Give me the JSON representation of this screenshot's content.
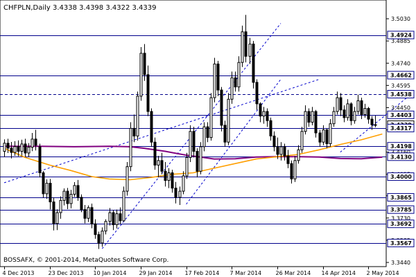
{
  "window": {
    "symbol_line": "CHFPLN,Daily  3.4338 3.4398 3.4322 3.4339",
    "copyright": "BOSSAFX, © 2001-2014, MetaQuotes Software Corp."
  },
  "colors": {
    "background": "#ffffff",
    "candle": "#000000",
    "level_line": "#00008b",
    "trend_line": "#0000cd",
    "ma_fast": "#ff9f00",
    "ma_slow": "#800080",
    "badge_fill": "#ffffff"
  },
  "chart_data": {
    "type": "candlestick",
    "symbol": "CHFPLN",
    "timeframe": "Daily",
    "ohlc_last": {
      "open": 3.4338,
      "high": 3.4398,
      "low": 3.4322,
      "close": 3.4339
    },
    "ylim": [
      3.344,
      3.508
    ],
    "y_ticks": [
      {
        "label": "3.5030",
        "value": 3.503
      },
      {
        "label": "3.4885",
        "value": 3.4885
      },
      {
        "label": "3.4740",
        "value": 3.474
      },
      {
        "label": "3.4595",
        "value": 3.4595
      },
      {
        "label": "3.4450",
        "value": 3.445
      },
      {
        "label": "3.4305",
        "value": 3.4305
      },
      {
        "label": "3.4160",
        "value": 3.416
      },
      {
        "label": "3.4015",
        "value": 3.4015
      },
      {
        "label": "3.3875",
        "value": 3.3875
      },
      {
        "label": "3.3730",
        "value": 3.373
      },
      {
        "label": "3.3585",
        "value": 3.3585
      },
      {
        "label": "3.3440",
        "value": 3.344
      }
    ],
    "x_ticks": [
      "4 Dec 2013",
      "23 Dec 2013",
      "10 Jan 2014",
      "29 Jan 2014",
      "17 Feb 2014",
      "7 Mar 2014",
      "26 Mar 2014",
      "14 Apr 2014",
      "2 May 2014"
    ],
    "x_tick_index": [
      0,
      13,
      26,
      39,
      52,
      65,
      78,
      91,
      104
    ],
    "horizontal_levels": [
      {
        "label": "3.4924",
        "value": 3.4924
      },
      {
        "label": "3.4662",
        "value": 3.4662
      },
      {
        "label": "3.4538",
        "value": 3.4538,
        "style": "dashed"
      },
      {
        "label": "3.4403",
        "value": 3.4403
      },
      {
        "label": "3.4339",
        "value": 3.4339,
        "current": true
      },
      {
        "label": "3.4317",
        "value": 3.4317
      },
      {
        "label": "3.4198",
        "value": 3.4198
      },
      {
        "label": "3.4130",
        "value": 3.413
      },
      {
        "label": "3.4000",
        "value": 3.4
      },
      {
        "label": "3.3865",
        "value": 3.3865
      },
      {
        "label": "3.3785",
        "value": 3.3785
      },
      {
        "label": "3.3692",
        "value": 3.3692
      },
      {
        "label": "3.3567",
        "value": 3.3567
      }
    ],
    "trend_lines": [
      {
        "from": [
          0,
          3.396
        ],
        "to": [
          90,
          3.4635
        ]
      },
      {
        "from": [
          28,
          3.353
        ],
        "to": [
          79,
          3.5
        ],
        "bounded": true
      },
      {
        "from": [
          52,
          3.382
        ],
        "to": [
          79,
          3.4635
        ]
      },
      {
        "from": [
          96,
          3.416
        ],
        "to": [
          115,
          3.4515
        ],
        "bounded": true
      }
    ],
    "moving_average_fast": [
      [
        0,
        3.4185
      ],
      [
        6,
        3.4125
      ],
      [
        13,
        3.4075
      ],
      [
        19,
        3.404
      ],
      [
        25,
        3.4
      ],
      [
        30,
        3.3985
      ],
      [
        36,
        3.398
      ],
      [
        42,
        3.3995
      ],
      [
        48,
        3.4015
      ],
      [
        54,
        3.4025
      ],
      [
        60,
        3.4055
      ],
      [
        66,
        3.4085
      ],
      [
        72,
        3.4115
      ],
      [
        78,
        3.413
      ],
      [
        84,
        3.4145
      ],
      [
        90,
        3.4175
      ],
      [
        96,
        3.421
      ],
      [
        102,
        3.424
      ],
      [
        108,
        3.4278
      ]
    ],
    "moving_average_slow": [
      [
        0,
        3.4198
      ],
      [
        10,
        3.4198
      ],
      [
        20,
        3.4195
      ],
      [
        30,
        3.4198
      ],
      [
        36,
        3.4195
      ],
      [
        40,
        3.4185
      ],
      [
        46,
        3.4165
      ],
      [
        52,
        3.414
      ],
      [
        56,
        3.4128
      ],
      [
        60,
        3.4115
      ],
      [
        66,
        3.4117
      ],
      [
        72,
        3.4128
      ],
      [
        78,
        3.413
      ],
      [
        84,
        3.413
      ],
      [
        90,
        3.4128
      ],
      [
        96,
        3.4118
      ],
      [
        102,
        3.4117
      ],
      [
        108,
        3.4127
      ]
    ],
    "candles": [
      [
        0,
        3.4165,
        3.4243,
        3.4128,
        3.4218
      ],
      [
        1,
        3.4218,
        3.4247,
        3.4154,
        3.4186
      ],
      [
        2,
        3.4186,
        3.4226,
        3.4119,
        3.4158
      ],
      [
        3,
        3.4158,
        3.4231,
        3.4136,
        3.4196
      ],
      [
        4,
        3.4196,
        3.4236,
        3.4133,
        3.4165
      ],
      [
        5,
        3.4165,
        3.4241,
        3.4137,
        3.4213
      ],
      [
        6,
        3.4213,
        3.4247,
        3.4129,
        3.4154
      ],
      [
        7,
        3.4154,
        3.4219,
        3.4127,
        3.4192
      ],
      [
        8,
        3.4192,
        3.4285,
        3.4166,
        3.4245
      ],
      [
        9,
        3.4245,
        3.4305,
        3.4171,
        3.4205
      ],
      [
        10,
        3.4195,
        3.4215,
        3.3995,
        3.4025
      ],
      [
        11,
        3.4025,
        3.4036,
        3.3862,
        3.3888
      ],
      [
        12,
        3.3888,
        3.3982,
        3.3855,
        3.3957
      ],
      [
        13,
        3.3957,
        3.3985,
        3.3786,
        3.3835
      ],
      [
        14,
        3.3835,
        3.3864,
        3.3649,
        3.3694
      ],
      [
        15,
        3.3694,
        3.3787,
        3.3651,
        3.3765
      ],
      [
        16,
        3.3765,
        3.3871,
        3.3725,
        3.3845
      ],
      [
        17,
        3.3845,
        3.3923,
        3.3812,
        3.3905
      ],
      [
        18,
        3.3905,
        3.3926,
        3.3788,
        3.3824
      ],
      [
        19,
        3.3824,
        3.3914,
        3.3793,
        3.3885
      ],
      [
        20,
        3.3885,
        3.3964,
        3.3868,
        3.3942
      ],
      [
        21,
        3.3942,
        3.3978,
        3.3842,
        3.3865
      ],
      [
        22,
        3.3865,
        3.3884,
        3.3768,
        3.3785
      ],
      [
        23,
        3.3785,
        3.3815,
        3.3695,
        3.3728
      ],
      [
        24,
        3.3728,
        3.3812,
        3.3704,
        3.3798
      ],
      [
        25,
        3.3798,
        3.3824,
        3.3663,
        3.3692
      ],
      [
        26,
        3.3692,
        3.3722,
        3.3595,
        3.3622
      ],
      [
        27,
        3.3622,
        3.3641,
        3.3528,
        3.3567
      ],
      [
        28,
        3.3567,
        3.3669,
        3.3542,
        3.3645
      ],
      [
        29,
        3.3645,
        3.3722,
        3.3623,
        3.3708
      ],
      [
        30,
        3.3708,
        3.3795,
        3.3681,
        3.3765
      ],
      [
        31,
        3.3765,
        3.3782,
        3.3651,
        3.3686
      ],
      [
        32,
        3.3686,
        3.3785,
        3.3662,
        3.3758
      ],
      [
        33,
        3.3758,
        3.3799,
        3.3688,
        3.3712
      ],
      [
        34,
        3.3712,
        3.3935,
        3.3705,
        3.3905
      ],
      [
        35,
        3.3905,
        3.4095,
        3.3876,
        3.4065
      ],
      [
        36,
        3.4065,
        3.4355,
        3.4035,
        3.4315
      ],
      [
        37,
        3.4315,
        3.4405,
        3.4225,
        3.4265
      ],
      [
        38,
        3.4265,
        3.4555,
        3.4235,
        3.4525
      ],
      [
        39,
        3.4525,
        3.4845,
        3.4495,
        3.4805
      ],
      [
        40,
        3.4805,
        3.4865,
        3.4625,
        3.4665
      ],
      [
        41,
        3.4665,
        3.4725,
        3.4395,
        3.4425
      ],
      [
        42,
        3.4425,
        3.4445,
        3.4195,
        3.4225
      ],
      [
        43,
        3.4225,
        3.4255,
        3.4045,
        3.4075
      ],
      [
        44,
        3.4075,
        3.4135,
        3.3995,
        3.4105
      ],
      [
        45,
        3.4105,
        3.4155,
        3.4015,
        3.4035
      ],
      [
        46,
        3.4035,
        3.4095,
        3.3935,
        3.3975
      ],
      [
        47,
        3.3975,
        3.4055,
        3.3925,
        3.4025
      ],
      [
        48,
        3.4025,
        3.4045,
        3.3895,
        3.3925
      ],
      [
        49,
        3.3925,
        3.3965,
        3.3825,
        3.3865
      ],
      [
        50,
        3.3865,
        3.3935,
        3.3815,
        3.3905
      ],
      [
        51,
        3.3905,
        3.4035,
        3.3885,
        3.4005
      ],
      [
        52,
        3.4005,
        3.4155,
        3.3985,
        3.4125
      ],
      [
        53,
        3.4125,
        3.4335,
        3.4095,
        3.4295
      ],
      [
        54,
        3.4295,
        3.4325,
        3.4125,
        3.4165
      ],
      [
        55,
        3.4165,
        3.4185,
        3.3995,
        3.4035
      ],
      [
        56,
        3.4035,
        3.4225,
        3.4015,
        3.4195
      ],
      [
        57,
        3.4195,
        3.4355,
        3.4165,
        3.4325
      ],
      [
        58,
        3.4325,
        3.4355,
        3.4225,
        3.4255
      ],
      [
        59,
        3.4255,
        3.4545,
        3.4235,
        3.4515
      ],
      [
        60,
        3.4515,
        3.4775,
        3.4485,
        3.4735
      ],
      [
        61,
        3.4735,
        3.4755,
        3.4525,
        3.4565
      ],
      [
        62,
        3.4565,
        3.4585,
        3.4295,
        3.4335
      ],
      [
        63,
        3.4335,
        3.4365,
        3.4195,
        3.4225
      ],
      [
        64,
        3.4225,
        3.4545,
        3.4205,
        3.4505
      ],
      [
        65,
        3.4505,
        3.4685,
        3.4475,
        3.4645
      ],
      [
        66,
        3.4645,
        3.4685,
        3.4555,
        3.4585
      ],
      [
        67,
        3.4585,
        3.4785,
        3.4555,
        3.4745
      ],
      [
        68,
        3.4745,
        3.4985,
        3.4715,
        3.4945
      ],
      [
        69,
        3.4945,
        3.5055,
        3.4745,
        3.4785
      ],
      [
        70,
        3.4785,
        3.4905,
        3.4735,
        3.4865
      ],
      [
        71,
        3.4865,
        3.4885,
        3.4575,
        3.4615
      ],
      [
        72,
        3.4615,
        3.4635,
        3.4435,
        3.4475
      ],
      [
        73,
        3.4475,
        3.4485,
        3.4355,
        3.4395
      ],
      [
        74,
        3.4395,
        3.4455,
        3.4345,
        3.4425
      ],
      [
        75,
        3.4425,
        3.4445,
        3.4325,
        3.4365
      ],
      [
        76,
        3.4365,
        3.4385,
        3.4235,
        3.4265
      ],
      [
        77,
        3.4265,
        3.4295,
        3.4165,
        3.4195
      ],
      [
        78,
        3.4195,
        3.4255,
        3.4115,
        3.4145
      ],
      [
        79,
        3.4145,
        3.4225,
        3.4105,
        3.4195
      ],
      [
        80,
        3.4195,
        3.4215,
        3.4105,
        3.4135
      ],
      [
        81,
        3.4135,
        3.4175,
        3.4055,
        3.4085
      ],
      [
        82,
        3.4085,
        3.4105,
        3.3955,
        3.3985
      ],
      [
        83,
        3.3985,
        3.4135,
        3.3965,
        3.4105
      ],
      [
        84,
        3.4105,
        3.4205,
        3.4085,
        3.4175
      ],
      [
        85,
        3.4175,
        3.4325,
        3.4155,
        3.4295
      ],
      [
        86,
        3.4295,
        3.4465,
        3.4275,
        3.4425
      ],
      [
        87,
        3.4425,
        3.4445,
        3.4325,
        3.4355
      ],
      [
        88,
        3.4355,
        3.4455,
        3.4335,
        3.4425
      ],
      [
        89,
        3.4425,
        3.4435,
        3.4255,
        3.4285
      ],
      [
        90,
        3.4285,
        3.4305,
        3.4195,
        3.4225
      ],
      [
        91,
        3.4225,
        3.4335,
        3.4205,
        3.4305
      ],
      [
        92,
        3.4305,
        3.4315,
        3.4185,
        3.4215
      ],
      [
        93,
        3.4215,
        3.4375,
        3.4195,
        3.4345
      ],
      [
        94,
        3.4345,
        3.4455,
        3.4325,
        3.4425
      ],
      [
        95,
        3.4425,
        3.4555,
        3.4405,
        3.4515
      ],
      [
        96,
        3.4515,
        3.4545,
        3.4395,
        3.4435
      ],
      [
        97,
        3.4435,
        3.4465,
        3.4355,
        3.4385
      ],
      [
        98,
        3.4385,
        3.4505,
        3.4365,
        3.4475
      ],
      [
        99,
        3.4475,
        3.4485,
        3.4335,
        3.4365
      ],
      [
        100,
        3.4365,
        3.4455,
        3.4345,
        3.4425
      ],
      [
        101,
        3.4425,
        3.4535,
        3.4405,
        3.4495
      ],
      [
        102,
        3.4495,
        3.4515,
        3.4375,
        3.4405
      ],
      [
        103,
        3.4405,
        3.4475,
        3.4385,
        3.4445
      ],
      [
        104,
        3.4445,
        3.4455,
        3.4345,
        3.4375
      ],
      [
        105,
        3.4375,
        3.4395,
        3.4305,
        3.4338
      ],
      [
        106,
        3.4338,
        3.4398,
        3.4322,
        3.4339
      ]
    ]
  }
}
